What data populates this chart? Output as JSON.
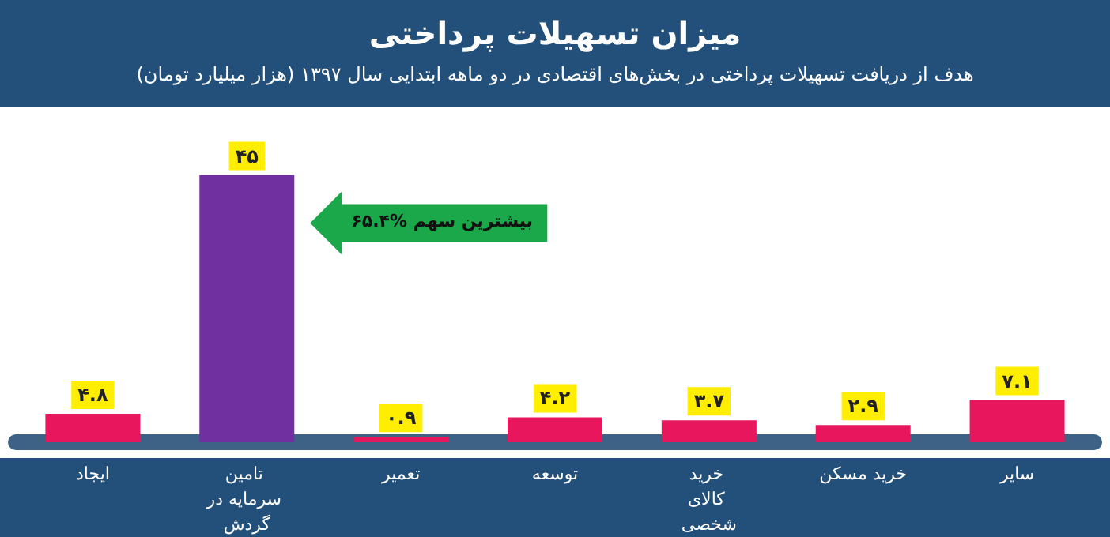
{
  "chart_data": {
    "type": "bar",
    "title": "میزان تسهیلات پرداختی",
    "subtitle": "هدف از دریافت تسهیلات پرداختی در بخش‌های اقتصادی در دو ماهه ابتدایی سال ۱۳۹۷ (هزار میلیارد تومان)",
    "categories": [
      "ایجاد",
      "تامین سرمایه در گردش",
      "تعمیر",
      "توسعه",
      "خرید کالای شخصی",
      "خرید مسکن",
      "سایر"
    ],
    "values": [
      4.8,
      45,
      0.9,
      4.2,
      3.7,
      2.9,
      7.1
    ],
    "value_labels": [
      "۴.۸",
      "۴۵",
      "۰.۹",
      "۴.۲",
      "۳.۷",
      "۲.۹",
      "۷.۱"
    ],
    "colors": [
      "#e8175d",
      "#7030a0",
      "#e8175d",
      "#e8175d",
      "#e8175d",
      "#e8175d",
      "#e8175d"
    ],
    "annotations": [
      "۶۵.۴% بیشترین سهم"
    ]
  }
}
